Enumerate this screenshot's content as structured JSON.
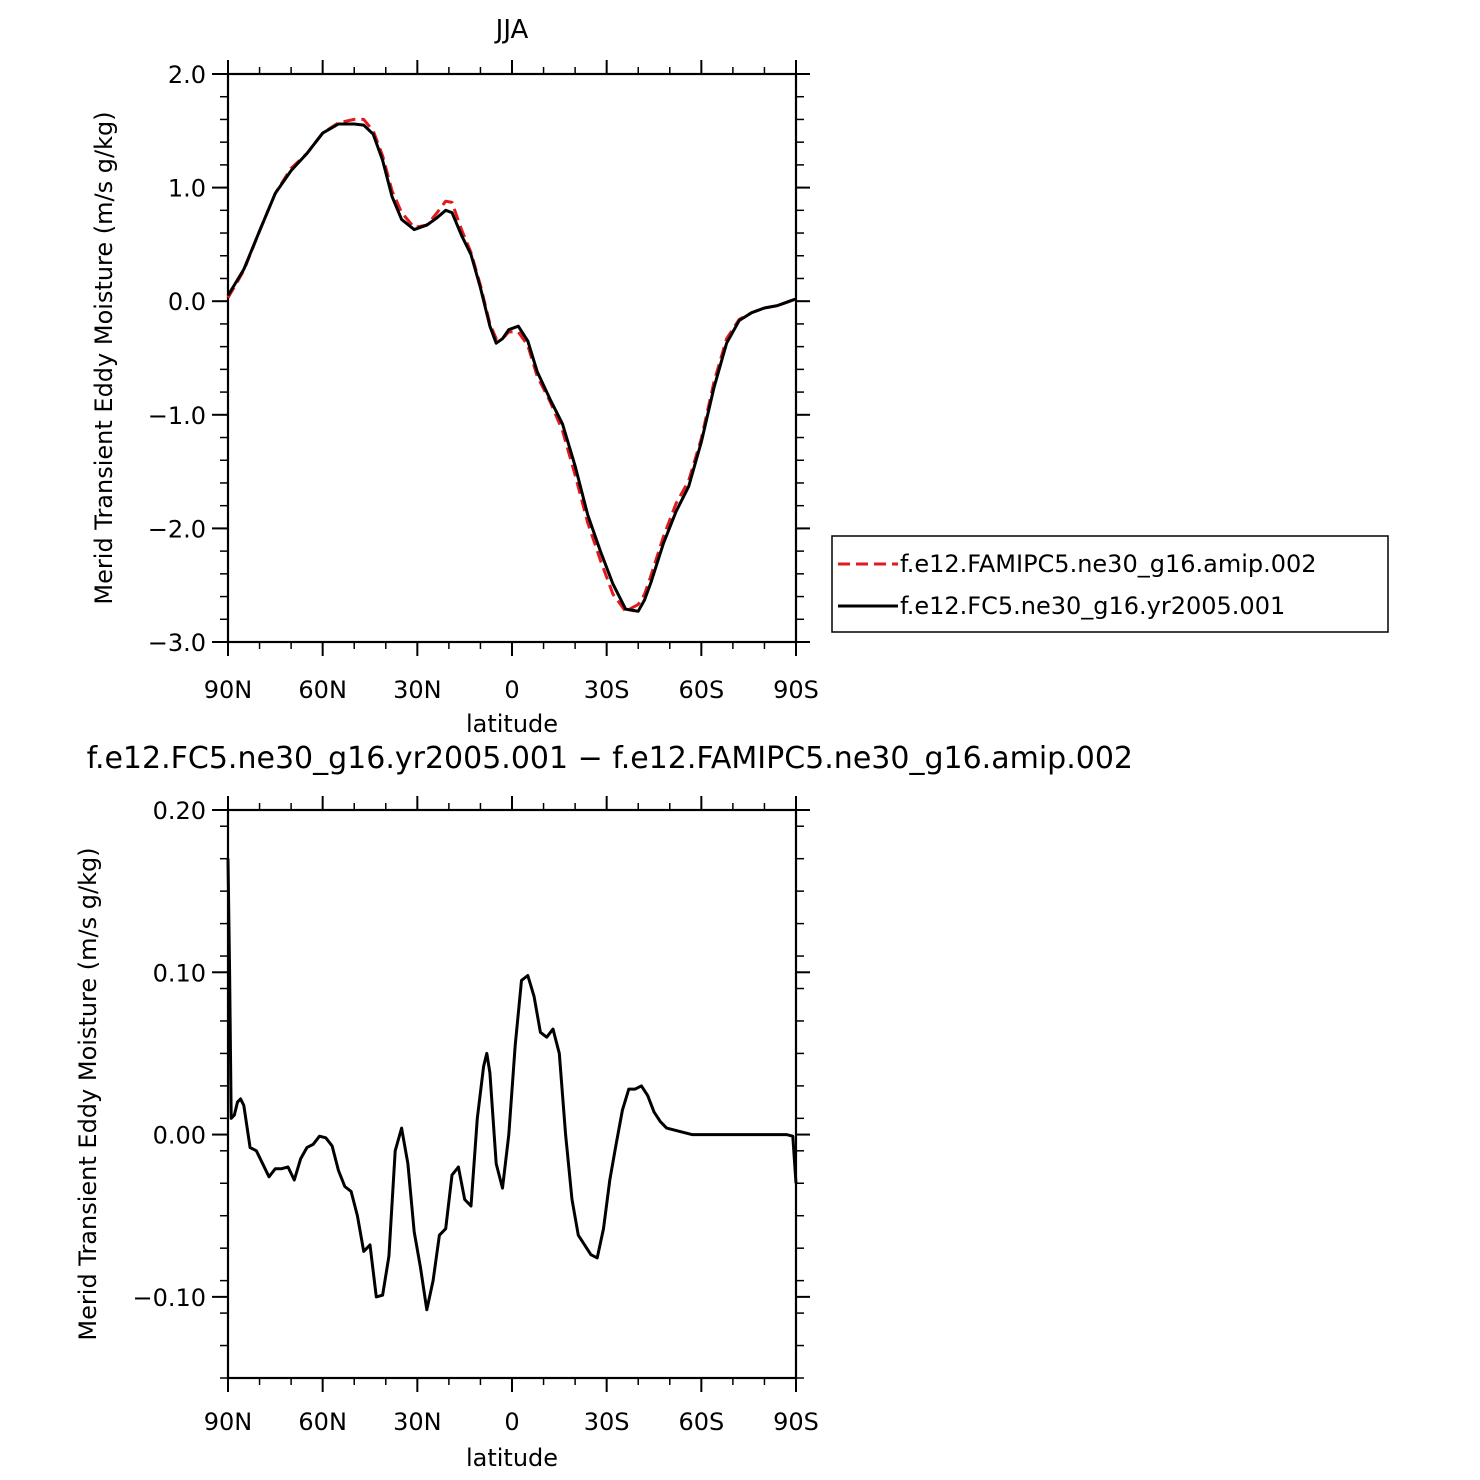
{
  "chart_data": [
    {
      "type": "line",
      "title": "JJA",
      "xlabel": "latitude",
      "ylabel": "Merid Transient Eddy Moisture (m/s g/kg)",
      "xlim": [
        90,
        -90
      ],
      "ylim": [
        -3.0,
        2.0
      ],
      "x_ticks": [
        90,
        60,
        30,
        0,
        -30,
        -60,
        -90
      ],
      "x_tick_labels": [
        "90N",
        "60N",
        "30N",
        "0",
        "30S",
        "60S",
        "90S"
      ],
      "y_ticks": [
        2.0,
        1.0,
        0.0,
        -1.0,
        -2.0,
        -3.0
      ],
      "y_tick_labels": [
        "2.0",
        "1.0",
        "0.0",
        "−1.0",
        "−2.0",
        "−3.0"
      ],
      "legend_position": "right",
      "series": [
        {
          "name": "f.e12.FAMIPC5.ne30_g16.amip.002",
          "color": "#e31a1c",
          "dash": "dashed",
          "x": [
            90,
            85,
            80,
            75,
            70,
            65,
            60,
            55,
            50,
            47,
            44,
            41,
            38,
            35,
            31,
            27,
            24,
            21,
            19,
            16,
            13,
            10,
            7,
            5,
            3,
            1,
            -2,
            -5,
            -8,
            -12,
            -16,
            -20,
            -24,
            -28,
            -32,
            -36,
            -40,
            -42,
            -44,
            -48,
            -52,
            -56,
            -60,
            -64,
            -68,
            -72,
            -76,
            -80,
            -84,
            -88,
            -90
          ],
          "y": [
            0.03,
            0.27,
            0.62,
            0.95,
            1.17,
            1.3,
            1.48,
            1.57,
            1.6,
            1.6,
            1.5,
            1.28,
            0.97,
            0.78,
            0.65,
            0.67,
            0.77,
            0.88,
            0.87,
            0.63,
            0.43,
            0.14,
            -0.2,
            -0.33,
            -0.33,
            -0.27,
            -0.27,
            -0.39,
            -0.66,
            -0.88,
            -1.14,
            -1.53,
            -1.95,
            -2.28,
            -2.58,
            -2.73,
            -2.67,
            -2.58,
            -2.42,
            -2.07,
            -1.78,
            -1.58,
            -1.21,
            -0.71,
            -0.33,
            -0.16,
            -0.1,
            -0.06,
            -0.04,
            0.0,
            0.02
          ]
        },
        {
          "name": "f.e12.FC5.ne30_g16.yr2005.001",
          "color": "#000000",
          "dash": "solid",
          "x": [
            90,
            85,
            80,
            75,
            70,
            65,
            60,
            55,
            50,
            47,
            44,
            41,
            38,
            35,
            31,
            27,
            24,
            21,
            19,
            16,
            13,
            10,
            7,
            5,
            3,
            1,
            -2,
            -5,
            -8,
            -12,
            -16,
            -20,
            -24,
            -28,
            -32,
            -36,
            -40,
            -42,
            -44,
            -48,
            -52,
            -56,
            -60,
            -64,
            -68,
            -72,
            -76,
            -80,
            -84,
            -88,
            -90
          ],
          "y": [
            0.05,
            0.28,
            0.62,
            0.95,
            1.15,
            1.3,
            1.48,
            1.56,
            1.56,
            1.55,
            1.47,
            1.24,
            0.92,
            0.72,
            0.63,
            0.67,
            0.73,
            0.8,
            0.78,
            0.58,
            0.41,
            0.12,
            -0.22,
            -0.37,
            -0.33,
            -0.25,
            -0.22,
            -0.35,
            -0.62,
            -0.86,
            -1.08,
            -1.45,
            -1.88,
            -2.2,
            -2.49,
            -2.71,
            -2.73,
            -2.63,
            -2.48,
            -2.13,
            -1.85,
            -1.63,
            -1.24,
            -0.76,
            -0.37,
            -0.17,
            -0.1,
            -0.06,
            -0.04,
            0.0,
            0.02
          ]
        }
      ]
    },
    {
      "type": "line",
      "title": "f.e12.FC5.ne30_g16.yr2005.001 − f.e12.FAMIPC5.ne30_g16.amip.002",
      "xlabel": "latitude",
      "ylabel": "Merid Transient Eddy Moisture (m/s g/kg)",
      "xlim": [
        90,
        -90
      ],
      "ylim": [
        -0.15,
        0.2
      ],
      "x_ticks": [
        90,
        60,
        30,
        0,
        -30,
        -60,
        -90
      ],
      "x_tick_labels": [
        "90N",
        "60N",
        "30N",
        "0",
        "30S",
        "60S",
        "90S"
      ],
      "y_ticks": [
        0.2,
        0.1,
        0.0,
        -0.1
      ],
      "y_tick_labels": [
        "0.20",
        "0.10",
        "0.00",
        "−0.10"
      ],
      "series": [
        {
          "color": "#000000",
          "dash": "solid",
          "x": [
            90,
            89.5,
            89,
            88,
            87,
            86,
            85,
            83,
            81,
            79,
            77,
            75,
            73,
            71,
            69,
            67,
            65,
            63,
            61,
            59,
            57,
            55,
            53,
            51,
            49,
            47,
            45,
            43,
            41,
            39,
            37,
            35,
            33,
            31,
            29,
            27,
            25,
            23,
            21,
            19,
            17,
            15,
            13,
            11,
            9,
            8,
            7,
            5,
            3,
            1,
            -1,
            -3,
            -5,
            -7,
            -9,
            -11,
            -13,
            -15,
            -17,
            -19,
            -21,
            -23,
            -25,
            -27,
            -29,
            -31,
            -33,
            -35,
            -37,
            -39,
            -41,
            -43,
            -45,
            -47,
            -49,
            -51,
            -53,
            -55,
            -57,
            -59,
            -61,
            -63,
            -65,
            -67,
            -69,
            -71,
            -73,
            -75,
            -77,
            -79,
            -81,
            -83,
            -85,
            -87,
            -89,
            -90
          ],
          "y": [
            0.17,
            0.1,
            0.01,
            0.012,
            0.02,
            0.022,
            0.018,
            -0.008,
            -0.01,
            -0.018,
            -0.026,
            -0.021,
            -0.021,
            -0.02,
            -0.028,
            -0.015,
            -0.008,
            -0.006,
            -0.001,
            -0.002,
            -0.007,
            -0.022,
            -0.032,
            -0.035,
            -0.05,
            -0.072,
            -0.068,
            -0.1,
            -0.099,
            -0.075,
            -0.01,
            0.004,
            -0.018,
            -0.06,
            -0.082,
            -0.108,
            -0.09,
            -0.062,
            -0.058,
            -0.025,
            -0.02,
            -0.04,
            -0.044,
            0.01,
            0.042,
            0.05,
            0.038,
            -0.018,
            -0.033,
            0.0,
            0.055,
            0.095,
            0.098,
            0.085,
            0.063,
            0.06,
            0.065,
            0.05,
            0.0,
            -0.04,
            -0.062,
            -0.068,
            -0.074,
            -0.076,
            -0.058,
            -0.028,
            -0.006,
            0.015,
            0.028,
            0.028,
            0.03,
            0.024,
            0.014,
            0.008,
            0.004,
            0.003,
            0.002,
            0.001,
            0.0,
            0.0,
            0.0,
            0.0,
            0.0,
            0.0,
            0.0,
            0.0,
            0.0,
            0.0,
            0.0,
            0.0,
            0.0,
            0.0,
            0.0,
            0.0,
            -0.001,
            -0.03
          ]
        }
      ]
    }
  ]
}
